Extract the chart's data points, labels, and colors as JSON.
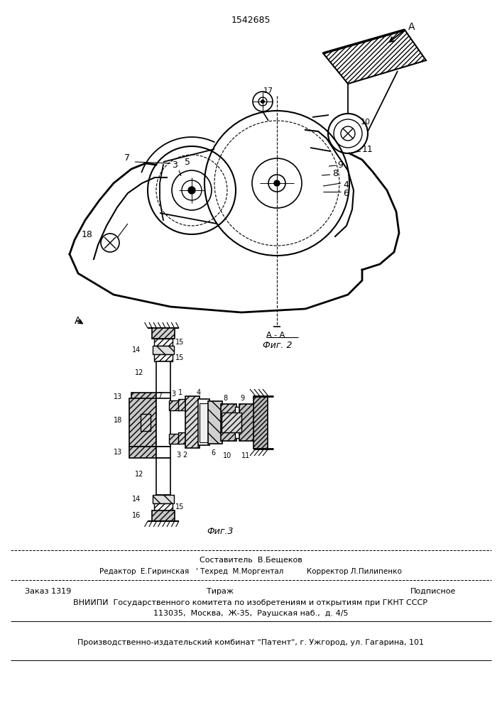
{
  "patent_number": "1542685",
  "fig2_label": "Фиг. 2",
  "fig3_label": "Фиг.3",
  "bg_color": "#ffffff",
  "line_color": "#000000",
  "footer_sestavitel": "Составитель  В.Бещеков",
  "footer_editor": "Редактор  Е.Гиринская   ' Техред  М.Моргентал          Корректор Л.Пилипенко",
  "footer_zakaz": "Заказ 1319",
  "footer_tirazh": "Тираж",
  "footer_podpisnoe": "Подписное",
  "footer_vniipи": "ВНИИПИ  Государственного комитета по изобретениям и открытиям при ГКНТ СССР",
  "footer_addr": "113035,  Москва,  Ж-35,  Раушская наб.,  д. 4/5",
  "footer_patent": "Производственно-издательский комбинат \"Патент\", г. Ужгород, ул. Гагарина, 101"
}
